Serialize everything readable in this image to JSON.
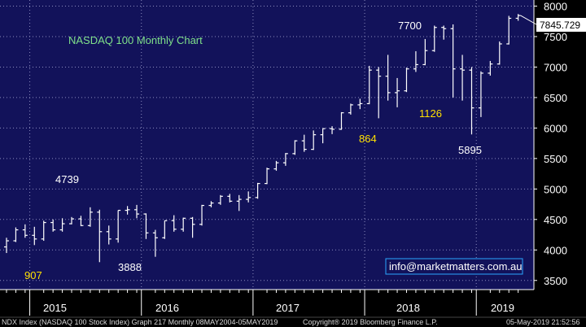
{
  "chart_data": {
    "type": "ohlc",
    "title": "NASDAQ 100 Monthly Chart",
    "y_ticks": [
      8000,
      7500,
      7000,
      6500,
      6000,
      5500,
      5000,
      4500,
      4000,
      3500
    ],
    "ylim": [
      3350,
      8100
    ],
    "year_labels": [
      "2015",
      "2016",
      "2017",
      "2018",
      "2019"
    ],
    "last_value": "7845.729",
    "annotations": [
      {
        "text": "4739",
        "color": "white",
        "value": 4739
      },
      {
        "text": "907",
        "color": "yellow"
      },
      {
        "text": "3888",
        "color": "white",
        "value": 3888
      },
      {
        "text": "864",
        "color": "yellow"
      },
      {
        "text": "7700",
        "color": "white",
        "value": 7700
      },
      {
        "text": "1126",
        "color": "yellow"
      },
      {
        "text": "5895",
        "color": "white",
        "value": 5895
      }
    ],
    "email": "info@marketmatters.com.au",
    "footer_left": "NDX Index (NASDAQ 100 Stock Index) Graph 217  Monthly 08MAY2004-05MAY2019",
    "footer_mid": "Copyright® 2019 Bloomberg Finance L.P.",
    "footer_right": "05-May-2019 21:52:56",
    "bars": [
      {
        "m": "2014-10",
        "o": 4050,
        "h": 4200,
        "l": 3950,
        "c": 4150
      },
      {
        "m": "2014-11",
        "o": 4150,
        "h": 4370,
        "l": 4130,
        "c": 4330
      },
      {
        "m": "2014-12",
        "o": 4330,
        "h": 4420,
        "l": 4200,
        "c": 4240
      },
      {
        "m": "2015-01",
        "o": 4240,
        "h": 4380,
        "l": 4080,
        "c": 4180
      },
      {
        "m": "2015-02",
        "o": 4180,
        "h": 4480,
        "l": 4150,
        "c": 4450
      },
      {
        "m": "2015-03",
        "o": 4450,
        "h": 4500,
        "l": 4300,
        "c": 4330
      },
      {
        "m": "2015-04",
        "o": 4330,
        "h": 4520,
        "l": 4300,
        "c": 4430
      },
      {
        "m": "2015-05",
        "o": 4430,
        "h": 4540,
        "l": 4420,
        "c": 4510
      },
      {
        "m": "2015-06",
        "o": 4510,
        "h": 4560,
        "l": 4390,
        "c": 4400
      },
      {
        "m": "2015-07",
        "o": 4400,
        "h": 4700,
        "l": 4380,
        "c": 4620
      },
      {
        "m": "2015-08",
        "o": 4620,
        "h": 4660,
        "l": 3800,
        "c": 4300
      },
      {
        "m": "2015-09",
        "o": 4300,
        "h": 4400,
        "l": 4090,
        "c": 4180
      },
      {
        "m": "2015-10",
        "o": 4180,
        "h": 4650,
        "l": 4120,
        "c": 4650
      },
      {
        "m": "2015-11",
        "o": 4650,
        "h": 4720,
        "l": 4580,
        "c": 4660
      },
      {
        "m": "2015-12",
        "o": 4660,
        "h": 4739,
        "l": 4520,
        "c": 4590
      },
      {
        "m": "2016-01",
        "o": 4590,
        "h": 4600,
        "l": 4180,
        "c": 4280
      },
      {
        "m": "2016-02",
        "o": 4280,
        "h": 4330,
        "l": 3888,
        "c": 4200
      },
      {
        "m": "2016-03",
        "o": 4200,
        "h": 4480,
        "l": 4180,
        "c": 4480
      },
      {
        "m": "2016-04",
        "o": 4480,
        "h": 4570,
        "l": 4300,
        "c": 4340
      },
      {
        "m": "2016-05",
        "o": 4340,
        "h": 4530,
        "l": 4300,
        "c": 4520
      },
      {
        "m": "2016-06",
        "o": 4520,
        "h": 4540,
        "l": 4200,
        "c": 4420
      },
      {
        "m": "2016-07",
        "o": 4420,
        "h": 4740,
        "l": 4400,
        "c": 4730
      },
      {
        "m": "2016-08",
        "o": 4730,
        "h": 4800,
        "l": 4700,
        "c": 4770
      },
      {
        "m": "2016-09",
        "o": 4770,
        "h": 4900,
        "l": 4740,
        "c": 4880
      },
      {
        "m": "2016-10",
        "o": 4880,
        "h": 4920,
        "l": 4780,
        "c": 4800
      },
      {
        "m": "2016-11",
        "o": 4800,
        "h": 4900,
        "l": 4640,
        "c": 4830
      },
      {
        "m": "2016-12",
        "o": 4830,
        "h": 4960,
        "l": 4780,
        "c": 4860
      },
      {
        "m": "2017-01",
        "o": 4860,
        "h": 5100,
        "l": 4840,
        "c": 5090
      },
      {
        "m": "2017-02",
        "o": 5090,
        "h": 5350,
        "l": 5080,
        "c": 5330
      },
      {
        "m": "2017-03",
        "o": 5330,
        "h": 5460,
        "l": 5300,
        "c": 5430
      },
      {
        "m": "2017-04",
        "o": 5430,
        "h": 5590,
        "l": 5380,
        "c": 5580
      },
      {
        "m": "2017-05",
        "o": 5580,
        "h": 5800,
        "l": 5560,
        "c": 5790
      },
      {
        "m": "2017-06",
        "o": 5790,
        "h": 5890,
        "l": 5610,
        "c": 5650
      },
      {
        "m": "2017-07",
        "o": 5650,
        "h": 5960,
        "l": 5640,
        "c": 5890
      },
      {
        "m": "2017-08",
        "o": 5890,
        "h": 5990,
        "l": 5750,
        "c": 5990
      },
      {
        "m": "2017-09",
        "o": 5990,
        "h": 6030,
        "l": 5900,
        "c": 5980
      },
      {
        "m": "2017-10",
        "o": 5980,
        "h": 6260,
        "l": 5970,
        "c": 6250
      },
      {
        "m": "2017-11",
        "o": 6250,
        "h": 6400,
        "l": 6220,
        "c": 6380
      },
      {
        "m": "2017-12",
        "o": 6380,
        "h": 6480,
        "l": 6310,
        "c": 6400
      },
      {
        "m": "2018-01",
        "o": 6400,
        "h": 7020,
        "l": 6390,
        "c": 6950
      },
      {
        "m": "2018-02",
        "o": 6950,
        "h": 7000,
        "l": 6160,
        "c": 6850
      },
      {
        "m": "2018-03",
        "o": 6850,
        "h": 7200,
        "l": 6450,
        "c": 6580
      },
      {
        "m": "2018-04",
        "o": 6580,
        "h": 6820,
        "l": 6340,
        "c": 6610
      },
      {
        "m": "2018-05",
        "o": 6610,
        "h": 6990,
        "l": 6590,
        "c": 6970
      },
      {
        "m": "2018-06",
        "o": 6970,
        "h": 7260,
        "l": 6920,
        "c": 7040
      },
      {
        "m": "2018-07",
        "o": 7040,
        "h": 7460,
        "l": 7030,
        "c": 7270
      },
      {
        "m": "2018-08",
        "o": 7270,
        "h": 7680,
        "l": 7250,
        "c": 7650
      },
      {
        "m": "2018-09",
        "o": 7650,
        "h": 7680,
        "l": 7450,
        "c": 7630
      },
      {
        "m": "2018-10",
        "o": 7630,
        "h": 7700,
        "l": 6500,
        "c": 6970
      },
      {
        "m": "2018-11",
        "o": 6970,
        "h": 7200,
        "l": 6450,
        "c": 6950
      },
      {
        "m": "2018-12",
        "o": 6950,
        "h": 7000,
        "l": 5895,
        "c": 6330
      },
      {
        "m": "2019-01",
        "o": 6330,
        "h": 6930,
        "l": 6180,
        "c": 6900
      },
      {
        "m": "2019-02",
        "o": 6900,
        "h": 7100,
        "l": 6860,
        "c": 7050
      },
      {
        "m": "2019-03",
        "o": 7050,
        "h": 7420,
        "l": 7040,
        "c": 7380
      },
      {
        "m": "2019-04",
        "o": 7380,
        "h": 7840,
        "l": 7370,
        "c": 7800
      },
      {
        "m": "2019-05",
        "o": 7800,
        "h": 7870,
        "l": 7760,
        "c": 7845.729
      }
    ]
  }
}
